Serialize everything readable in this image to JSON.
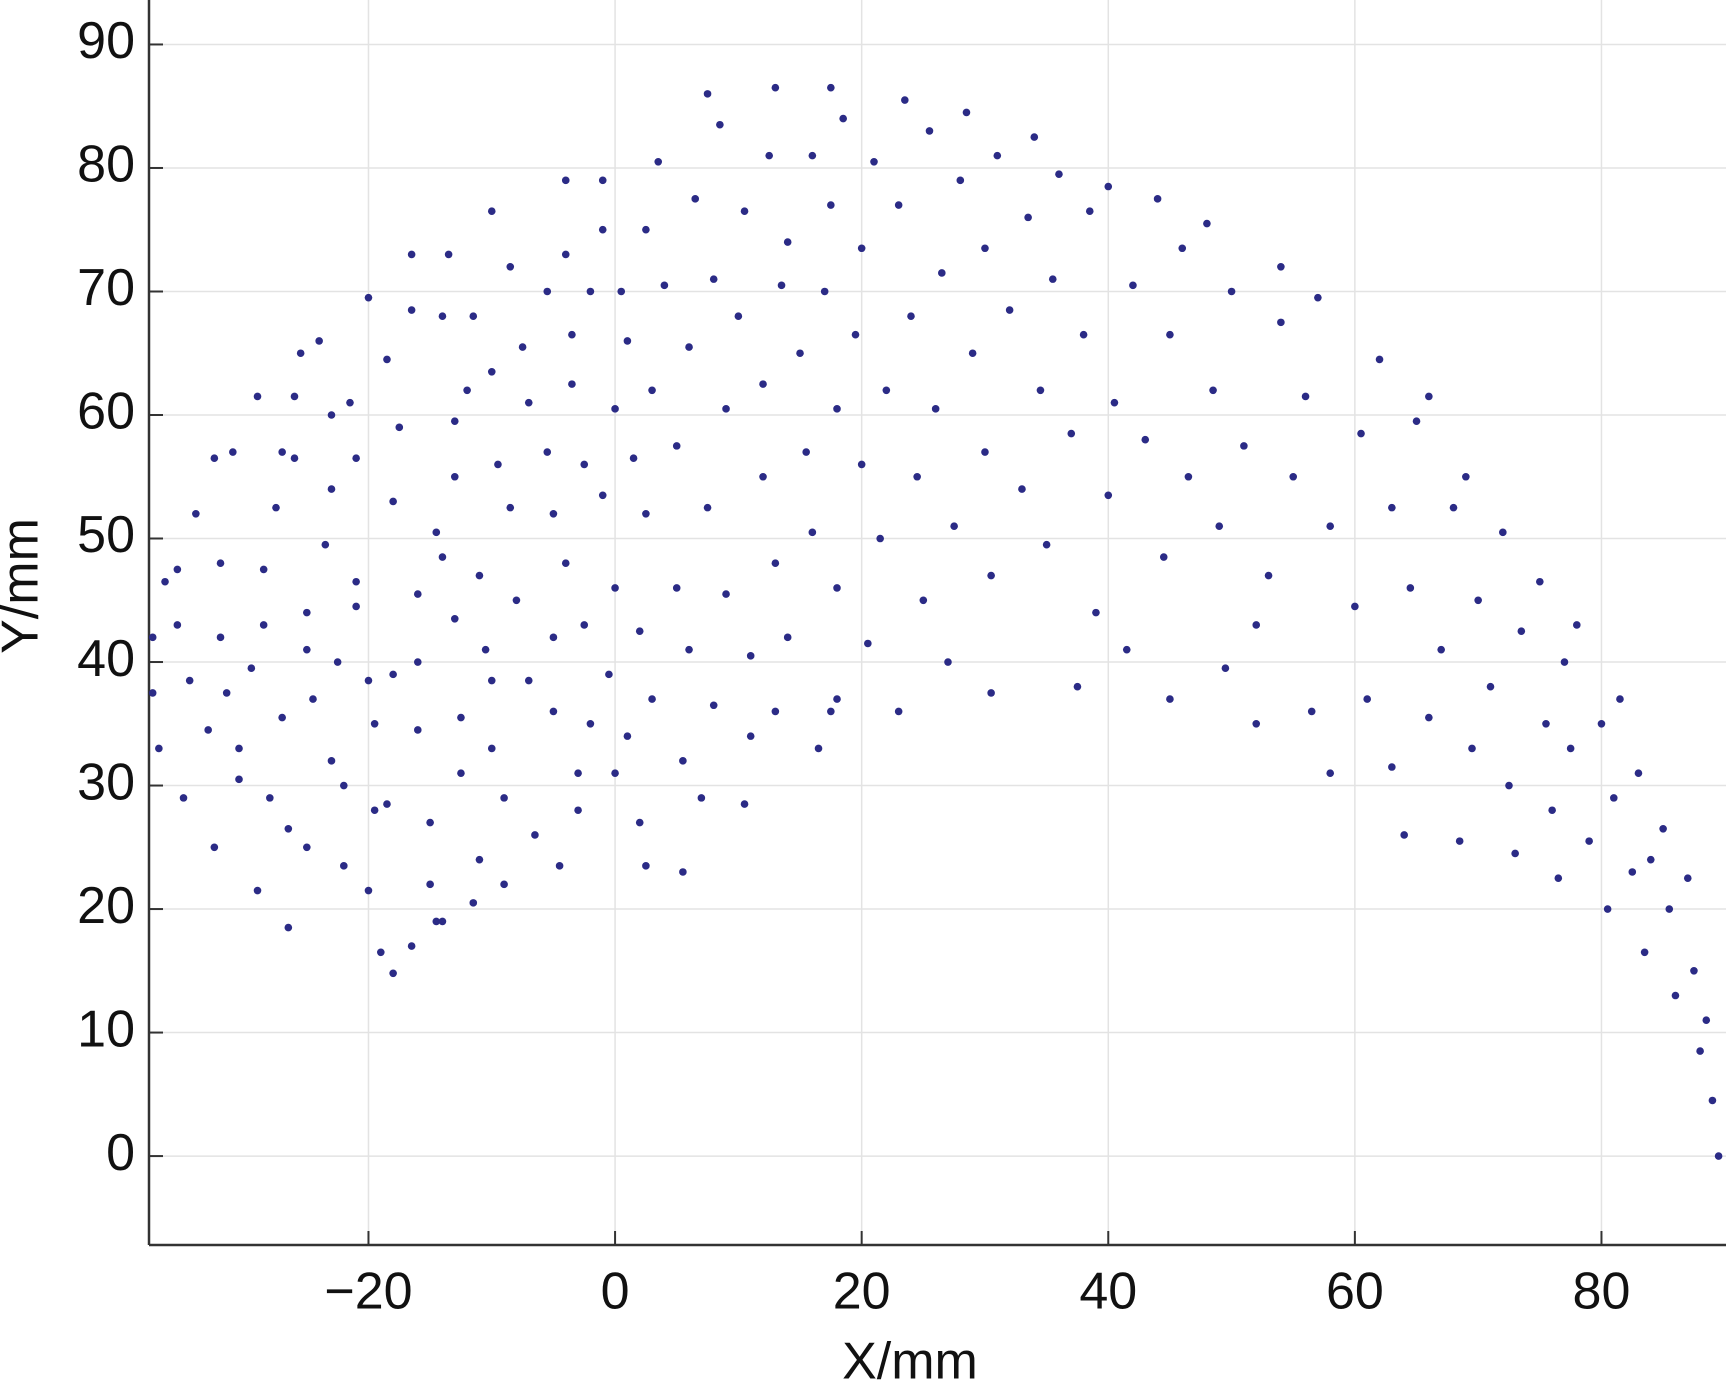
{
  "chart_data": {
    "type": "scatter",
    "x_label": "X/mm",
    "y_label": "Y/mm",
    "color": "#2b2b86",
    "grid": true,
    "xlim": [
      -37.8,
      90.1
    ],
    "ylim": [
      -7.2,
      93.6
    ],
    "xticks": [
      -20,
      0,
      20,
      40,
      60,
      80
    ],
    "yticks": [
      0,
      10,
      20,
      30,
      40,
      50,
      60,
      70,
      80,
      90
    ],
    "x": [
      -37.5,
      -37.5,
      -37,
      -36.5,
      -35.5,
      -35.5,
      -35,
      -34.5,
      -34,
      -33,
      -32.5,
      -32.5,
      -32,
      -32,
      -31.5,
      -31,
      -30.5,
      -30.5,
      -29.5,
      -29,
      -29,
      -28.5,
      -28.5,
      -28,
      -27.5,
      -27,
      -27,
      -26.5,
      -26,
      -26,
      -25.5,
      -25,
      -25,
      -25,
      -24.5,
      -26.5,
      -24,
      -23.5,
      -23,
      -23,
      -23,
      -22.5,
      -22,
      -22,
      -21.5,
      -21,
      -21,
      -21,
      -20,
      -20,
      -20,
      -19.5,
      -19.5,
      -19,
      -18.5,
      -18,
      -18,
      -18.5,
      -17.5,
      -16.5,
      -16.5,
      -16,
      -16,
      -16,
      -15,
      -15,
      -14.5,
      -14.5,
      -14,
      -14,
      -13.5,
      -13,
      -13,
      -13,
      -12.5,
      -12.5,
      -12,
      -11.5,
      -18,
      -11,
      -11,
      -11.5,
      -10.5,
      -10,
      -10,
      -10,
      -10,
      -9.5,
      -9,
      -8.5,
      -8.5,
      -16.5,
      -8,
      -7.5,
      -7,
      -7,
      -6.5,
      -14,
      -5.5,
      -5.5,
      -5,
      -5,
      -5,
      -4.5,
      -4,
      -4,
      -4,
      -3.5,
      -3.5,
      -3,
      -3,
      -2.5,
      -2.5,
      -2,
      -2,
      -9,
      -1,
      -1,
      -1,
      -0.5,
      0,
      0,
      0,
      0.5,
      1,
      1,
      2.5,
      1.5,
      2,
      2,
      2.5,
      2.5,
      3,
      3,
      3.5,
      4,
      5.5,
      5,
      5,
      5.5,
      6,
      6,
      6.5,
      7,
      7.5,
      8,
      8,
      8.5,
      9,
      9,
      10.5,
      10,
      10.5,
      11,
      11,
      12,
      12,
      12.5,
      13,
      13.5,
      14,
      14,
      15,
      13,
      15.5,
      16,
      16,
      16.5,
      17,
      17.5,
      17.5,
      18,
      18,
      18.5,
      18,
      19.5,
      13,
      7.5,
      17.5,
      20,
      20,
      20.5,
      21,
      21.5,
      22,
      23,
      23,
      23.5,
      24,
      24.5,
      25,
      25.5,
      26,
      26.5,
      27,
      27.5,
      28,
      28.5,
      29,
      30,
      30,
      30.5,
      31,
      30.5,
      32,
      33,
      33.5,
      34,
      34.5,
      35,
      35.5,
      36,
      37.5,
      37,
      38,
      38.5,
      39,
      40,
      40.5,
      40,
      42,
      41.5,
      43,
      44,
      44.5,
      45,
      46,
      46.5,
      45,
      48,
      48.5,
      49,
      50,
      49.5,
      51,
      52,
      52,
      53,
      54,
      55,
      54,
      56,
      56.5,
      58,
      57,
      58,
      60,
      60.5,
      61,
      62,
      63,
      63,
      64,
      64.5,
      65,
      66,
      66,
      67,
      68,
      68.5,
      69,
      70,
      69.5,
      71,
      72,
      72.5,
      73,
      73.5,
      75,
      75.5,
      76,
      77,
      77.5,
      76.5,
      78,
      79,
      80,
      80.5,
      81,
      81.5,
      83,
      82.5,
      83.5,
      84,
      85,
      85.5,
      86,
      87,
      87.5,
      88,
      88.5,
      89,
      89.5
    ],
    "values": [
      42,
      37.5,
      33,
      46.5,
      47.5,
      43,
      29,
      38.5,
      52,
      34.5,
      56.5,
      25,
      48,
      42,
      37.5,
      57,
      33,
      30.5,
      39.5,
      61.5,
      21.5,
      47.5,
      43,
      29,
      52.5,
      57,
      35.5,
      26.5,
      56.5,
      61.5,
      65,
      44,
      41,
      25,
      37,
      18.5,
      66,
      49.5,
      60,
      54,
      32,
      40,
      30,
      23.5,
      61,
      56.5,
      46.5,
      44.5,
      69.5,
      38.5,
      21.5,
      28,
      35,
      16.5,
      64.5,
      53,
      39,
      28.5,
      59,
      68.5,
      73,
      45.5,
      34.5,
      40,
      27,
      22,
      50.5,
      19,
      48.5,
      68,
      73,
      59.5,
      55,
      43.5,
      35.5,
      31,
      62,
      68,
      14.8,
      47,
      24,
      20.5,
      41,
      76.5,
      63.5,
      38.5,
      33,
      56,
      29,
      72,
      52.5,
      17,
      45,
      65.5,
      61,
      38.5,
      26,
      19,
      70,
      57,
      52,
      42,
      36,
      23.5,
      79,
      73,
      48,
      66.5,
      62.5,
      31,
      28,
      56,
      43,
      70,
      35,
      22,
      79,
      75,
      53.5,
      39,
      60.5,
      46,
      31,
      70,
      66,
      34,
      23.5,
      56.5,
      42.5,
      27,
      75,
      52,
      62,
      37,
      80.5,
      70.5,
      23,
      57.5,
      46,
      32,
      65.5,
      41,
      77.5,
      29,
      52.5,
      71,
      36.5,
      83.5,
      60.5,
      45.5,
      28.5,
      68,
      76.5,
      40.5,
      34,
      62.5,
      55,
      81,
      48,
      70.5,
      74,
      42,
      65,
      36,
      57,
      81,
      50.5,
      33,
      70,
      77,
      36,
      60.5,
      46,
      84,
      37,
      66.5,
      86.5,
      86,
      86.5,
      73.5,
      56,
      41.5,
      80.5,
      50,
      62,
      77,
      36,
      85.5,
      68,
      55,
      45,
      83,
      60.5,
      71.5,
      40,
      51,
      79,
      84.5,
      65,
      57,
      73.5,
      47,
      81,
      37.5,
      68.5,
      54,
      76,
      82.5,
      62,
      49.5,
      71,
      79.5,
      38,
      58.5,
      66.5,
      76.5,
      44,
      53.5,
      61,
      78.5,
      70.5,
      41,
      58,
      77.5,
      48.5,
      66.5,
      73.5,
      55,
      37,
      75.5,
      62,
      51,
      70,
      39.5,
      57.5,
      43,
      35,
      47,
      67.5,
      55,
      72,
      61.5,
      36,
      51,
      69.5,
      31,
      44.5,
      58.5,
      37,
      64.5,
      31.5,
      52.5,
      26,
      46,
      59.5,
      61.5,
      35.5,
      41,
      52.5,
      25.5,
      55,
      45,
      33,
      38,
      50.5,
      30,
      24.5,
      42.5,
      46.5,
      35,
      28,
      40,
      33,
      22.5,
      43,
      25.5,
      35,
      20,
      29,
      37,
      31,
      23,
      16.5,
      24,
      26.5,
      20,
      13,
      22.5,
      15,
      8.5,
      11,
      4.5,
      0
    ]
  }
}
